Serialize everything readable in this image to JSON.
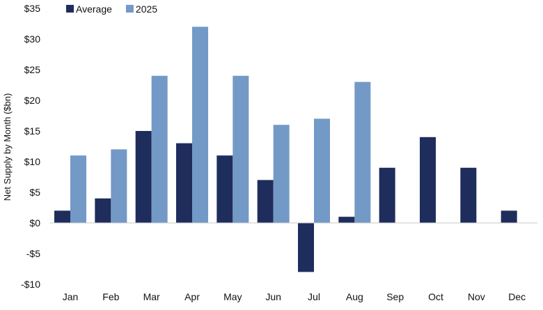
{
  "chart_data": {
    "type": "bar",
    "title": "",
    "xlabel": "",
    "ylabel": "Net Supply by Month ($bn)",
    "categories": [
      "Jan",
      "Feb",
      "Mar",
      "Apr",
      "May",
      "Jun",
      "Jul",
      "Aug",
      "Sep",
      "Oct",
      "Nov",
      "Dec"
    ],
    "series": [
      {
        "name": "Average",
        "color": "#1f2d5c",
        "values": [
          2,
          4,
          15,
          13,
          11,
          7,
          -8,
          1,
          9,
          14,
          9,
          2
        ]
      },
      {
        "name": "2025",
        "color": "#7399c6",
        "values": [
          11,
          12,
          24,
          32,
          24,
          16,
          17,
          23,
          null,
          null,
          null,
          null
        ]
      }
    ],
    "ylim": [
      -10,
      35
    ],
    "yticks": [
      -10,
      -5,
      0,
      5,
      10,
      15,
      20,
      25,
      30,
      35
    ],
    "ytick_labels": [
      "-$10",
      "-$5",
      "$0",
      "$5",
      "$10",
      "$15",
      "$20",
      "$25",
      "$30",
      "$35"
    ],
    "grid": false,
    "legend_position": "top-left"
  }
}
